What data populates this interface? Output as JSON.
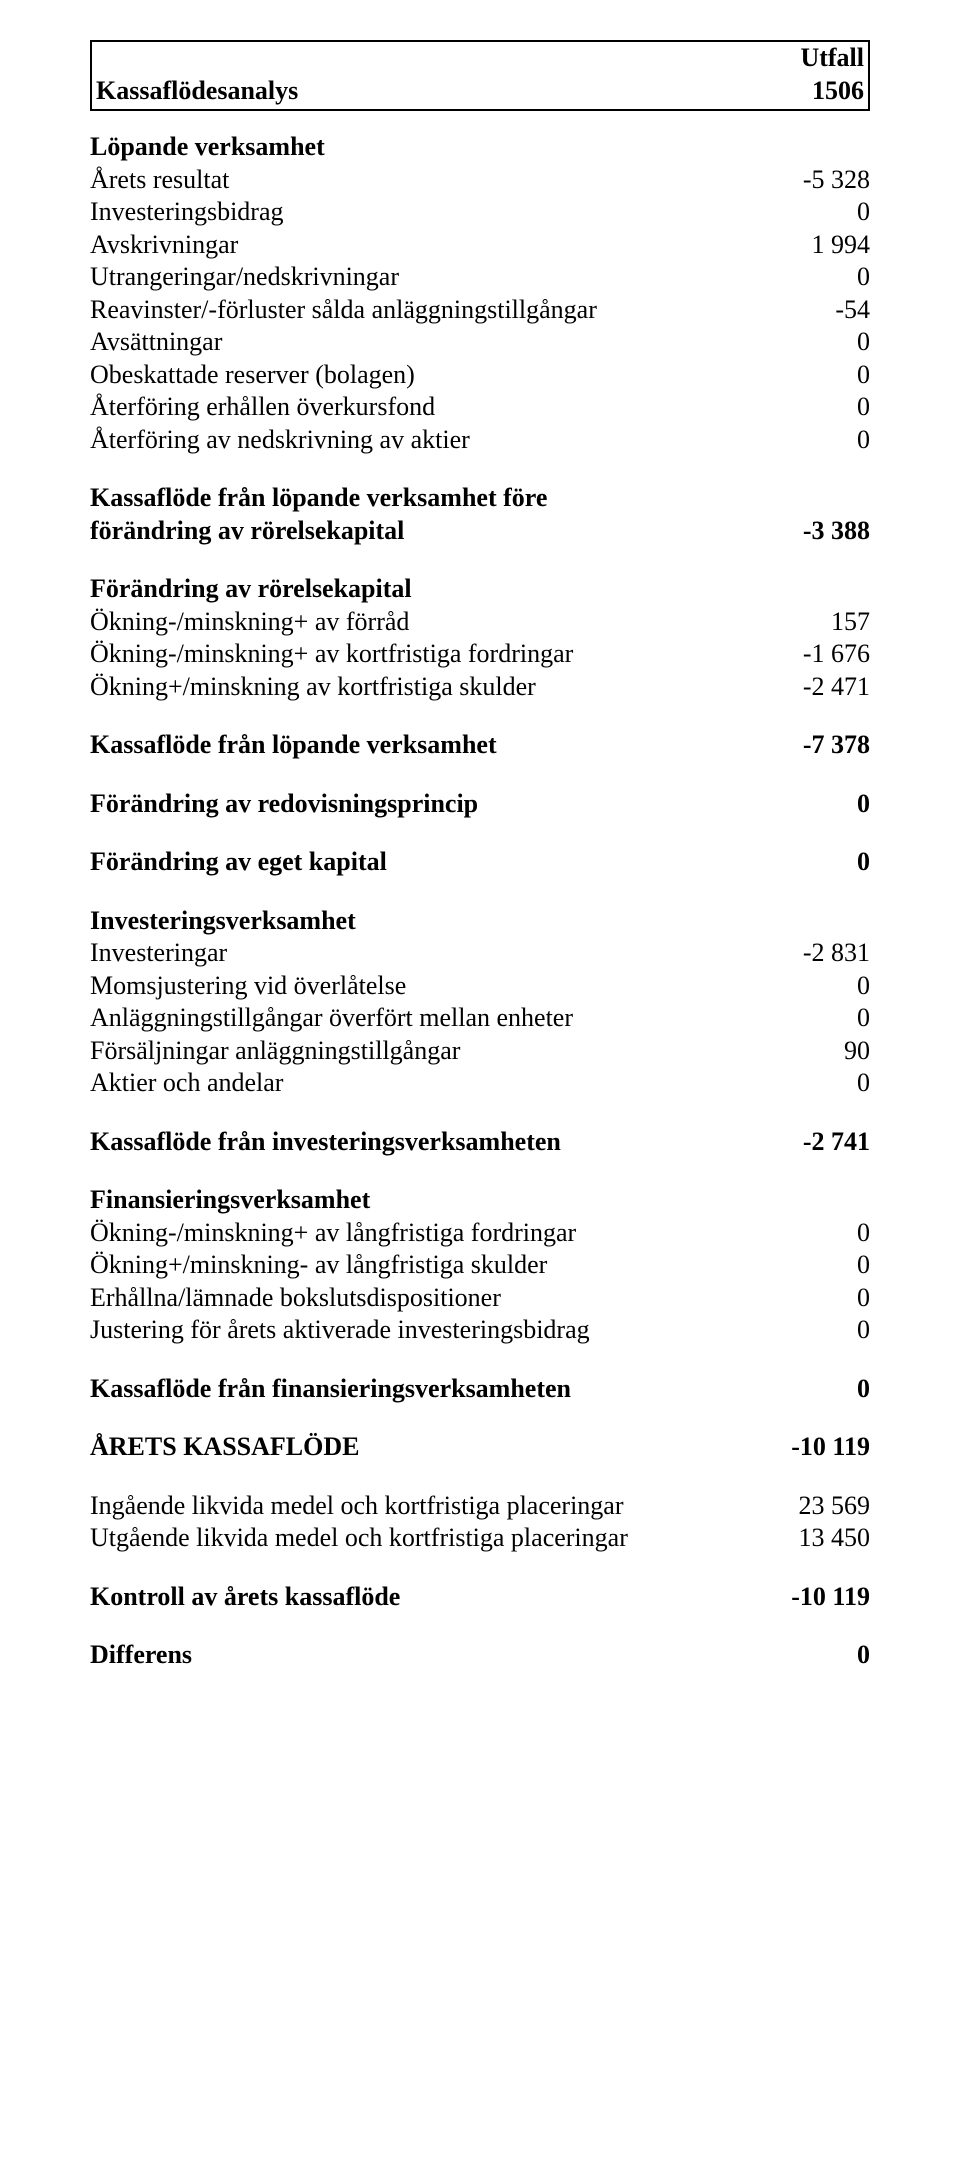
{
  "header": {
    "right_label": "Utfall",
    "title": "Kassaflödesanalys",
    "period": "1506"
  },
  "s1": {
    "heading": "Löpande verksamhet",
    "rows": [
      {
        "label": "Årets resultat",
        "value": "-5 328"
      },
      {
        "label": "Investeringsbidrag",
        "value": "0"
      },
      {
        "label": "Avskrivningar",
        "value": "1 994"
      },
      {
        "label": "Utrangeringar/nedskrivningar",
        "value": "0"
      },
      {
        "label": "Reavinster/-förluster sålda anläggningstillgångar",
        "value": "-54"
      },
      {
        "label": "Avsättningar",
        "value": "0"
      },
      {
        "label": "Obeskattade reserver (bolagen)",
        "value": "0"
      },
      {
        "label": "Återföring erhållen överkursfond",
        "value": "0"
      },
      {
        "label": "Återföring av nedskrivning av aktier",
        "value": "0"
      }
    ]
  },
  "sub1": {
    "label_l1": "Kassaflöde från löpande verksamhet före",
    "label_l2": "förändring av rörelsekapital",
    "value": "-3 388"
  },
  "s2": {
    "heading": "Förändring av rörelsekapital",
    "rows": [
      {
        "label": "Ökning-/minskning+ av förråd",
        "value": "157"
      },
      {
        "label": "Ökning-/minskning+ av kortfristiga fordringar",
        "value": "-1 676"
      },
      {
        "label": "Ökning+/minskning av kortfristiga skulder",
        "value": "-2 471"
      }
    ]
  },
  "sub2": {
    "label": "Kassaflöde från löpande verksamhet",
    "value": "-7 378"
  },
  "sub3": {
    "label": "Förändring av redovisningsprincip",
    "value": "0"
  },
  "sub4": {
    "label": "Förändring av eget kapital",
    "value": "0"
  },
  "s3": {
    "heading": "Investeringsverksamhet",
    "rows": [
      {
        "label": "Investeringar",
        "value": "-2 831"
      },
      {
        "label": "Momsjustering vid överlåtelse",
        "value": "0"
      },
      {
        "label": "Anläggningstillgångar överfört mellan enheter",
        "value": "0"
      },
      {
        "label": "Försäljningar anläggningstillgångar",
        "value": "90"
      },
      {
        "label": "Aktier och andelar",
        "value": "0"
      }
    ]
  },
  "sub5": {
    "label": "Kassaflöde från investeringsverksamheten",
    "value": "-2 741"
  },
  "s4": {
    "heading": "Finansieringsverksamhet",
    "rows": [
      {
        "label": "Ökning-/minskning+ av långfristiga fordringar",
        "value": "0"
      },
      {
        "label": "Ökning+/minskning- av långfristiga skulder",
        "value": "0"
      },
      {
        "label": "Erhållna/lämnade bokslutsdispositioner",
        "value": "0"
      },
      {
        "label": "Justering för årets aktiverade investeringsbidrag",
        "value": "0"
      }
    ]
  },
  "sub6": {
    "label": "Kassaflöde från finansieringsverksamheten",
    "value": "0"
  },
  "sub7": {
    "label": "ÅRETS KASSAFLÖDE",
    "value": "-10 119"
  },
  "s5": {
    "rows": [
      {
        "label": "Ingående likvida medel och kortfristiga placeringar",
        "value": "23 569"
      },
      {
        "label": "Utgående likvida medel och kortfristiga placeringar",
        "value": "13 450"
      }
    ]
  },
  "sub8": {
    "label": "Kontroll av årets kassaflöde",
    "value": "-10 119"
  },
  "sub9": {
    "label": "Differens",
    "value": "0"
  }
}
